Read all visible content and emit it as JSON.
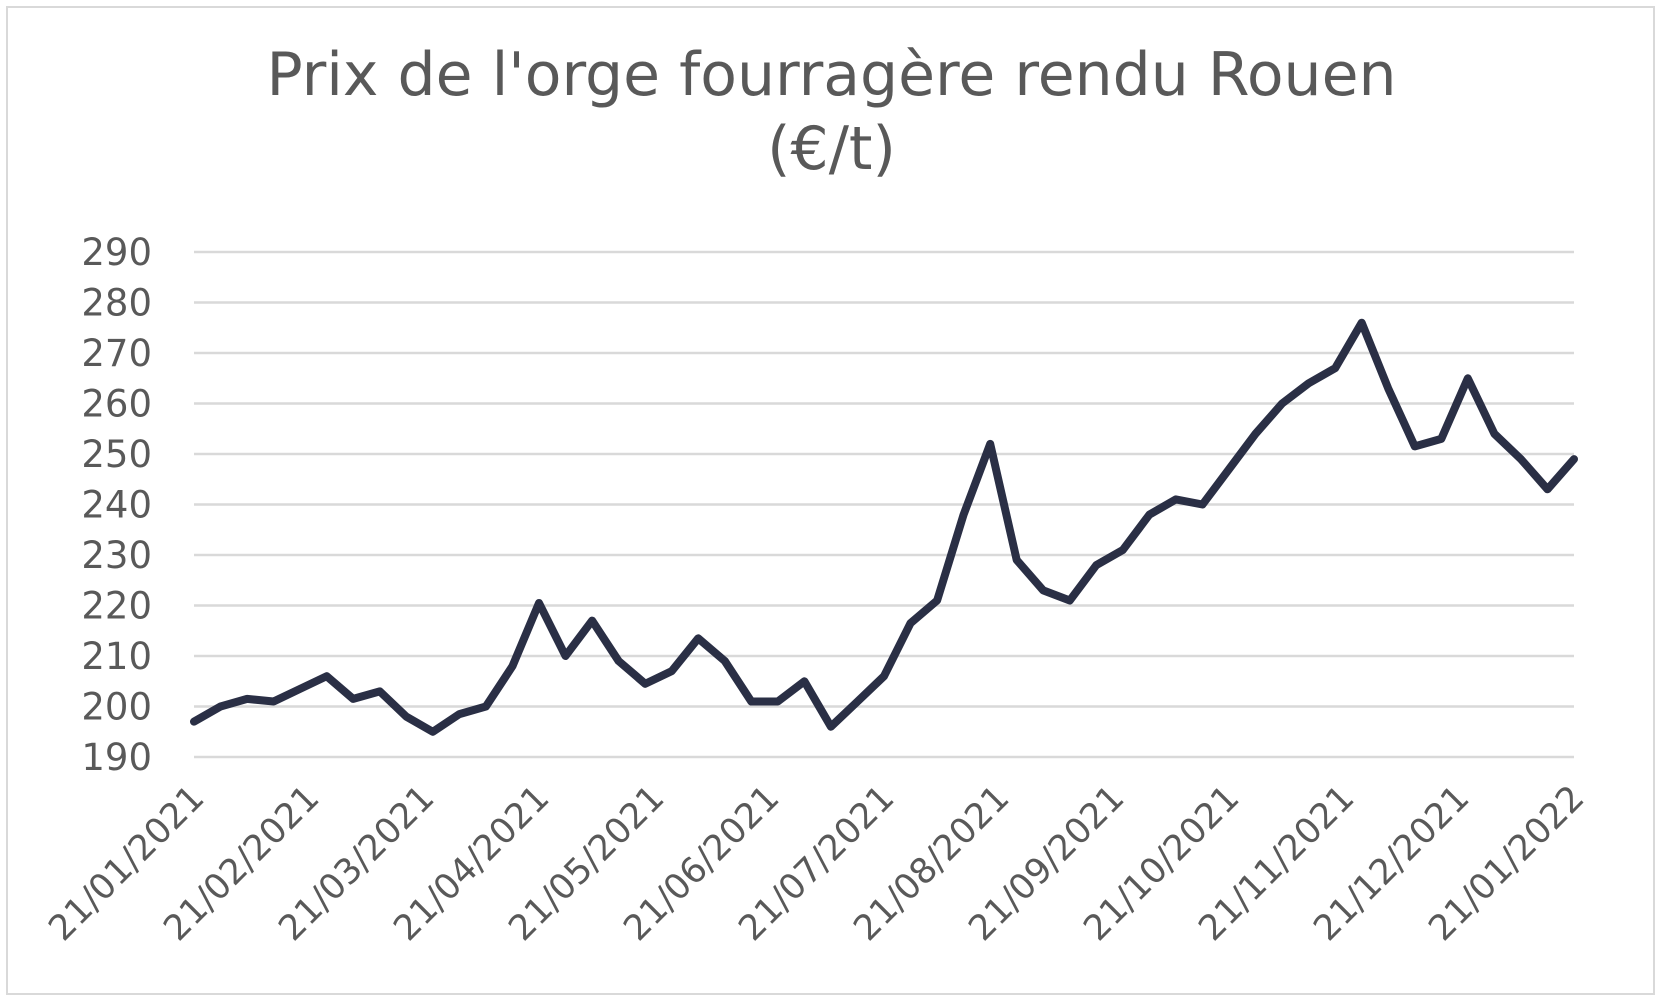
{
  "chart_data": {
    "type": "line",
    "title": "Prix de l'orge fourragère rendu Rouen",
    "subtitle": "(€/t)",
    "xlabel": "",
    "ylabel": "",
    "ylim": [
      190,
      290
    ],
    "y_ticks": [
      190,
      200,
      210,
      220,
      230,
      240,
      250,
      260,
      270,
      280,
      290
    ],
    "x_tick_labels": [
      "21/01/2021",
      "21/02/2021",
      "21/03/2021",
      "21/04/2021",
      "21/05/2021",
      "21/06/2021",
      "21/07/2021",
      "21/08/2021",
      "21/09/2021",
      "21/10/2021",
      "21/11/2021",
      "21/12/2021",
      "21/01/2022"
    ],
    "grid": true,
    "legend": "none",
    "line_color": "#2a2f45",
    "series": [
      {
        "values": [
          197,
          200,
          201.5,
          201,
          203.5,
          206,
          201.5,
          203,
          198,
          195,
          198.5,
          200,
          208,
          220.5,
          210,
          217,
          209,
          204.5,
          207,
          213.5,
          209,
          201,
          201,
          205,
          196,
          201,
          206,
          216.5,
          221,
          238,
          252,
          229,
          223,
          221,
          228,
          231,
          238,
          241,
          240,
          247,
          254,
          260,
          264,
          267,
          276,
          263,
          251.5,
          253,
          265,
          254,
          249,
          243,
          249
        ]
      }
    ]
  }
}
